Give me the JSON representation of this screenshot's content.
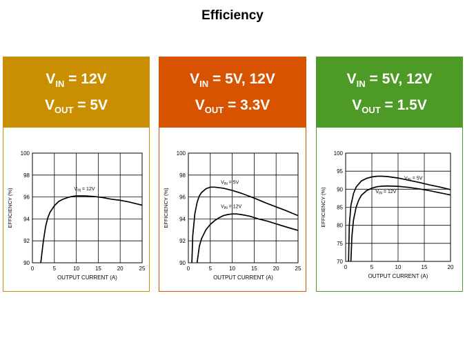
{
  "title": "Efficiency",
  "panels": [
    {
      "color": "#c98f00",
      "vin_label": "V",
      "vin_sub": "IN",
      "vin_value": " = 12V",
      "vout_label": "V",
      "vout_sub": "OUT",
      "vout_value": " = 5V",
      "chart_data": {
        "type": "line",
        "xlabel": "OUTPUT CURRENT (A)",
        "ylabel": "EFFICIENCY (%)",
        "xlim": [
          0,
          25
        ],
        "ylim": [
          90,
          100
        ],
        "xticks": [
          0,
          5,
          10,
          15,
          20,
          25
        ],
        "yticks": [
          90,
          92,
          94,
          96,
          98,
          100
        ],
        "grid": true,
        "series": [
          {
            "name": "VIN = 12V",
            "label_main": "V",
            "label_sub": "IN",
            "label_rest": " = 12V",
            "label_at": [
              9.5,
              96.6
            ],
            "x": [
              1.9,
              2.5,
              3.0,
              3.5,
              4.0,
              5.0,
              6.0,
              7.0,
              8.0,
              9.0,
              10.0,
              12.0,
              14.0,
              16.0,
              18.0,
              20.0,
              22.0,
              24.0,
              25.0
            ],
            "y": [
              90.0,
              92.0,
              93.3,
              94.1,
              94.6,
              95.2,
              95.6,
              95.8,
              95.95,
              96.05,
              96.1,
              96.1,
              96.05,
              95.95,
              95.8,
              95.7,
              95.55,
              95.35,
              95.25
            ]
          }
        ]
      }
    },
    {
      "color": "#d85300",
      "vin_label": "V",
      "vin_sub": "IN",
      "vin_value": " = 5V, 12V",
      "vout_label": "V",
      "vout_sub": "OUT",
      "vout_value": " = 3.3V",
      "chart_data": {
        "type": "line",
        "xlabel": "OUTPUT CURRENT (A)",
        "ylabel": "EFFICIENCY (%)",
        "xlim": [
          0,
          25
        ],
        "ylim": [
          90,
          100
        ],
        "xticks": [
          0,
          5,
          10,
          15,
          20,
          25
        ],
        "yticks": [
          90,
          92,
          94,
          96,
          98,
          100
        ],
        "grid": true,
        "series": [
          {
            "name": "VIN = 5V",
            "label_main": "V",
            "label_sub": "IN",
            "label_rest": " = 5V",
            "label_at": [
              7.4,
              97.2
            ],
            "x": [
              0.8,
              1.0,
              1.5,
              2.0,
              2.5,
              3.0,
              4.0,
              5.0,
              6.0,
              8.0,
              10.0,
              12.0,
              15.0,
              18.0,
              20.0,
              22.0,
              25.0
            ],
            "y": [
              90.0,
              92.5,
              94.5,
              95.5,
              96.1,
              96.4,
              96.75,
              96.9,
              96.9,
              96.8,
              96.6,
              96.35,
              95.9,
              95.4,
              95.1,
              94.8,
              94.3
            ]
          },
          {
            "name": "VIN = 12V",
            "label_main": "V",
            "label_sub": "IN",
            "label_rest": " = 12V",
            "label_at": [
              7.4,
              95.0
            ],
            "x": [
              2.0,
              2.5,
              3.0,
              4.0,
              5.0,
              6.0,
              7.0,
              8.0,
              9.0,
              10.0,
              11.0,
              12.0,
              14.0,
              16.0,
              18.0,
              20.0,
              22.0,
              25.0
            ],
            "y": [
              90.0,
              91.5,
              92.2,
              93.0,
              93.5,
              93.85,
              94.1,
              94.3,
              94.4,
              94.45,
              94.45,
              94.4,
              94.25,
              94.0,
              93.8,
              93.55,
              93.3,
              92.95
            ]
          }
        ]
      }
    },
    {
      "color": "#4e9a26",
      "vin_label": "V",
      "vin_sub": "IN",
      "vin_value": " = 5V, 12V",
      "vout_label": "V",
      "vout_sub": "OUT",
      "vout_value": " = 1.5V",
      "chart_data": {
        "type": "line",
        "xlabel": "OUTPUT CURRENT (A)",
        "ylabel": "EFFICIENCY (%)",
        "xlim": [
          0,
          20
        ],
        "ylim": [
          70,
          100
        ],
        "xticks": [
          0,
          5,
          10,
          15,
          20
        ],
        "yticks": [
          70,
          75,
          80,
          85,
          90,
          95,
          100
        ],
        "grid": true,
        "series": [
          {
            "name": "VIN = 5V",
            "label_main": "V",
            "label_sub": "IN",
            "label_rest": " = 5V",
            "label_at": [
              11.2,
              92.6
            ],
            "x": [
              0.55,
              0.7,
              1.0,
              1.5,
              2.0,
              3.0,
              4.0,
              5.0,
              6.0,
              7.0,
              8.0,
              10.0,
              12.0,
              14.0,
              16.0,
              18.0,
              20.0
            ],
            "y": [
              70.0,
              80.0,
              85.5,
              88.8,
              90.6,
              92.3,
              93.0,
              93.4,
              93.6,
              93.6,
              93.5,
              93.1,
              92.5,
              91.9,
              91.2,
              90.6,
              89.9
            ]
          },
          {
            "name": "VIN = 12V",
            "label_main": "V",
            "label_sub": "IN",
            "label_rest": " = 12V",
            "label_at": [
              5.7,
              88.9
            ],
            "x": [
              1.0,
              1.2,
              1.5,
              2.0,
              2.5,
              3.0,
              4.0,
              5.0,
              6.0,
              7.0,
              8.0,
              10.0,
              12.0,
              14.0,
              16.0,
              18.0,
              20.0
            ],
            "y": [
              70.0,
              77.0,
              81.5,
              85.0,
              87.0,
              88.3,
              89.6,
              90.3,
              90.7,
              90.85,
              90.9,
              90.8,
              90.5,
              90.1,
              89.6,
              89.0,
              88.4
            ]
          }
        ]
      }
    }
  ]
}
